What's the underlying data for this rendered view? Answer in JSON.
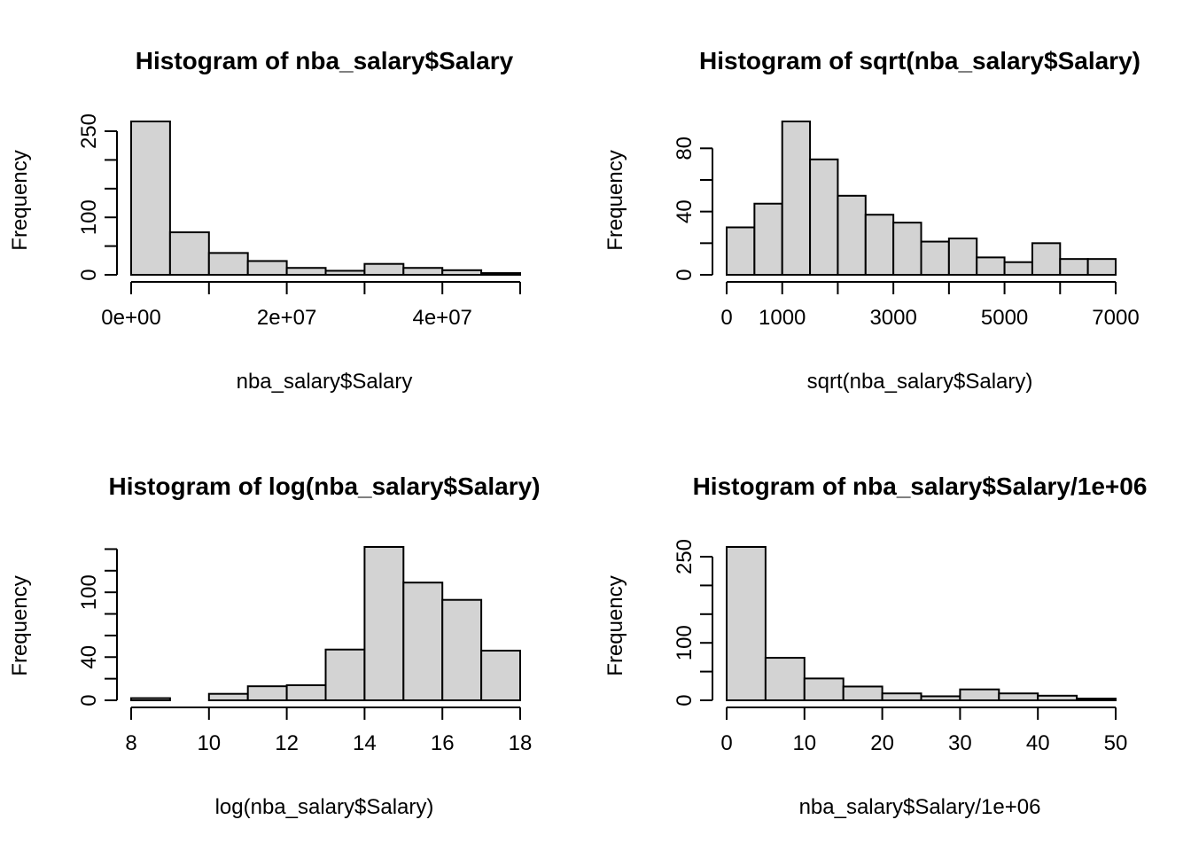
{
  "colors": {
    "bar_fill": "#d3d3d3",
    "bar_stroke": "#000000",
    "background": "#ffffff"
  },
  "chart_data": [
    {
      "type": "bar",
      "title": "Histogram of nba_salary$Salary",
      "xlabel": "nba_salary$Salary",
      "ylabel": "Frequency",
      "bins": [
        [
          0,
          5000000
        ],
        [
          5000000,
          10000000
        ],
        [
          10000000,
          15000000
        ],
        [
          15000000,
          20000000
        ],
        [
          20000000,
          25000000
        ],
        [
          25000000,
          30000000
        ],
        [
          30000000,
          35000000
        ],
        [
          35000000,
          40000000
        ],
        [
          40000000,
          45000000
        ],
        [
          45000000,
          50000000
        ]
      ],
      "values": [
        267,
        74,
        38,
        24,
        12,
        7,
        19,
        12,
        8,
        3
      ],
      "xlim": [
        0,
        50000000
      ],
      "ylim": [
        0,
        267
      ],
      "x_ticks": [
        0,
        10000000,
        20000000,
        30000000,
        40000000,
        50000000
      ],
      "x_tick_labels": [
        "0e+00",
        "",
        "2e+07",
        "",
        "4e+07",
        ""
      ],
      "y_ticks": [
        0,
        50,
        100,
        150,
        200,
        250
      ],
      "y_tick_labels": [
        "0",
        "",
        "100",
        "",
        "",
        "250"
      ],
      "grid": false
    },
    {
      "type": "bar",
      "title": "Histogram of sqrt(nba_salary$Salary)",
      "xlabel": "sqrt(nba_salary$Salary)",
      "ylabel": "Frequency",
      "bins": [
        [
          0,
          500
        ],
        [
          500,
          1000
        ],
        [
          1000,
          1500
        ],
        [
          1500,
          2000
        ],
        [
          2000,
          2500
        ],
        [
          2500,
          3000
        ],
        [
          3000,
          3500
        ],
        [
          3500,
          4000
        ],
        [
          4000,
          4500
        ],
        [
          4500,
          5000
        ],
        [
          5000,
          5500
        ],
        [
          5500,
          6000
        ],
        [
          6000,
          6500
        ],
        [
          6500,
          7000
        ]
      ],
      "values": [
        30,
        45,
        97,
        73,
        50,
        38,
        33,
        21,
        23,
        11,
        8,
        20,
        10,
        10
      ],
      "xlim": [
        0,
        7000
      ],
      "ylim": [
        0,
        97
      ],
      "x_ticks": [
        0,
        1000,
        2000,
        3000,
        4000,
        5000,
        6000,
        7000
      ],
      "x_tick_labels": [
        "0",
        "1000",
        "",
        "3000",
        "",
        "5000",
        "",
        "7000"
      ],
      "y_ticks": [
        0,
        20,
        40,
        60,
        80
      ],
      "y_tick_labels": [
        "0",
        "",
        "40",
        "",
        "80"
      ],
      "grid": false
    },
    {
      "type": "bar",
      "title": "Histogram of log(nba_salary$Salary)",
      "xlabel": "log(nba_salary$Salary)",
      "ylabel": "Frequency",
      "bins": [
        [
          8,
          9
        ],
        [
          9,
          10
        ],
        [
          10,
          11
        ],
        [
          11,
          12
        ],
        [
          12,
          13
        ],
        [
          13,
          14
        ],
        [
          14,
          15
        ],
        [
          15,
          16
        ],
        [
          16,
          17
        ],
        [
          17,
          18
        ]
      ],
      "values": [
        2,
        0,
        6,
        13,
        14,
        47,
        142,
        109,
        93,
        46
      ],
      "xlim": [
        8,
        18
      ],
      "ylim": [
        0,
        142
      ],
      "x_ticks": [
        8,
        10,
        12,
        14,
        16,
        18
      ],
      "x_tick_labels": [
        "8",
        "10",
        "12",
        "14",
        "16",
        "18"
      ],
      "y_ticks": [
        0,
        20,
        40,
        60,
        80,
        100,
        120,
        140
      ],
      "y_tick_labels": [
        "0",
        "",
        "40",
        "",
        "",
        "100",
        "",
        ""
      ],
      "grid": false
    },
    {
      "type": "bar",
      "title": "Histogram of nba_salary$Salary/1e+06",
      "xlabel": "nba_salary$Salary/1e+06",
      "ylabel": "Frequency",
      "bins": [
        [
          0,
          5
        ],
        [
          5,
          10
        ],
        [
          10,
          15
        ],
        [
          15,
          20
        ],
        [
          20,
          25
        ],
        [
          25,
          30
        ],
        [
          30,
          35
        ],
        [
          35,
          40
        ],
        [
          40,
          45
        ],
        [
          45,
          50
        ]
      ],
      "values": [
        267,
        74,
        38,
        24,
        12,
        7,
        19,
        12,
        8,
        3
      ],
      "xlim": [
        0,
        50
      ],
      "ylim": [
        0,
        267
      ],
      "x_ticks": [
        0,
        10,
        20,
        30,
        40,
        50
      ],
      "x_tick_labels": [
        "0",
        "10",
        "20",
        "30",
        "40",
        "50"
      ],
      "y_ticks": [
        0,
        50,
        100,
        150,
        200,
        250
      ],
      "y_tick_labels": [
        "0",
        "",
        "100",
        "",
        "",
        "250"
      ],
      "grid": false
    }
  ]
}
